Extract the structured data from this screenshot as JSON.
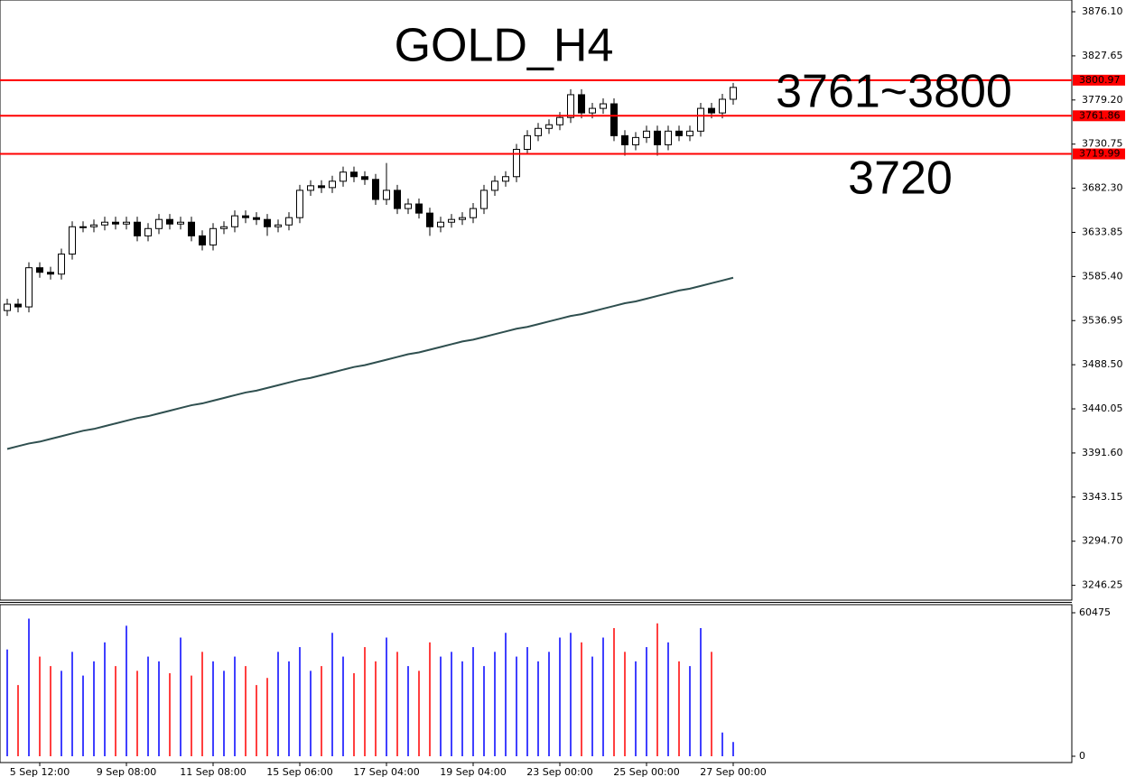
{
  "chart_data": {
    "type": "candlestick",
    "annotations": [
      {
        "text": "GOLD_H4",
        "color": "#ff0000"
      },
      {
        "text": "3761~3800",
        "color": "#000080"
      },
      {
        "text": "3720",
        "color": "#ff0000"
      }
    ],
    "categories": [
      null,
      null,
      null,
      "5 Sep 12:00",
      null,
      null,
      null,
      null,
      null,
      null,
      null,
      "9 Sep 08:00",
      null,
      null,
      null,
      null,
      null,
      null,
      null,
      "11 Sep 08:00",
      null,
      null,
      null,
      null,
      null,
      null,
      null,
      "15 Sep 06:00",
      null,
      null,
      null,
      null,
      null,
      null,
      null,
      "17 Sep 04:00",
      null,
      null,
      null,
      null,
      null,
      null,
      null,
      "19 Sep 04:00",
      null,
      null,
      null,
      null,
      null,
      null,
      null,
      "23 Sep 00:00",
      null,
      null,
      null,
      null,
      null,
      null,
      null,
      "25 Sep 00:00",
      null,
      null,
      null,
      null,
      null,
      null,
      null,
      "27 Sep 00:00"
    ],
    "open": [
      3548,
      3555,
      3552,
      3595,
      3590,
      3588,
      3610,
      3640,
      3640,
      3642,
      3645,
      3643,
      3645,
      3630,
      3638,
      3648,
      3643,
      3645,
      3630,
      3620,
      3638,
      3640,
      3652,
      3650,
      3648,
      3640,
      3642,
      3650,
      3680,
      3685,
      3683,
      3690,
      3700,
      3695,
      3692,
      3670,
      3680,
      3660,
      3665,
      3655,
      3640,
      3645,
      3648,
      3650,
      3660,
      3680,
      3690,
      3695,
      3725,
      3740,
      3748,
      3752,
      3760,
      3785,
      3765,
      3770,
      3775,
      3740,
      3730,
      3738,
      3745,
      3730,
      3745,
      3740,
      3745,
      3770,
      3765,
      3780
    ],
    "high": [
      3561,
      3561,
      3601,
      3601,
      3596,
      3616,
      3646,
      3646,
      3648,
      3651,
      3651,
      3651,
      3651,
      3644,
      3654,
      3654,
      3651,
      3651,
      3636,
      3644,
      3646,
      3658,
      3658,
      3656,
      3654,
      3648,
      3656,
      3686,
      3691,
      3691,
      3696,
      3706,
      3706,
      3701,
      3698,
      3710,
      3686,
      3671,
      3671,
      3661,
      3651,
      3654,
      3656,
      3666,
      3686,
      3696,
      3701,
      3731,
      3746,
      3754,
      3758,
      3766,
      3791,
      3791,
      3776,
      3781,
      3781,
      3746,
      3744,
      3751,
      3751,
      3751,
      3751,
      3751,
      3776,
      3776,
      3786,
      3798
    ],
    "low": [
      3542,
      3546,
      3546,
      3584,
      3582,
      3582,
      3604,
      3634,
      3634,
      3636,
      3637,
      3637,
      3624,
      3624,
      3632,
      3637,
      3637,
      3624,
      3614,
      3614,
      3632,
      3634,
      3644,
      3642,
      3630,
      3634,
      3636,
      3644,
      3674,
      3677,
      3677,
      3684,
      3689,
      3686,
      3664,
      3664,
      3654,
      3654,
      3649,
      3630,
      3634,
      3639,
      3642,
      3644,
      3654,
      3674,
      3684,
      3689,
      3719,
      3734,
      3742,
      3746,
      3754,
      3759,
      3759,
      3764,
      3734,
      3718,
      3724,
      3732,
      3718,
      3724,
      3734,
      3734,
      3739,
      3759,
      3759,
      3774
    ],
    "close": [
      3555,
      3552,
      3595,
      3590,
      3588,
      3610,
      3640,
      3640,
      3642,
      3645,
      3643,
      3645,
      3630,
      3638,
      3648,
      3643,
      3645,
      3630,
      3620,
      3638,
      3640,
      3652,
      3650,
      3648,
      3640,
      3642,
      3650,
      3680,
      3685,
      3683,
      3690,
      3700,
      3695,
      3692,
      3670,
      3680,
      3660,
      3665,
      3655,
      3640,
      3645,
      3648,
      3650,
      3660,
      3680,
      3690,
      3695,
      3725,
      3740,
      3748,
      3752,
      3760,
      3785,
      3765,
      3770,
      3775,
      3740,
      3730,
      3738,
      3745,
      3730,
      3745,
      3740,
      3745,
      3770,
      3765,
      3780,
      3793
    ],
    "moving_average": {
      "color": "#2f4f4f",
      "values": [
        3396,
        3399,
        3402,
        3404,
        3407,
        3410,
        3413,
        3416,
        3418,
        3421,
        3424,
        3427,
        3430,
        3432,
        3435,
        3438,
        3441,
        3444,
        3446,
        3449,
        3452,
        3455,
        3458,
        3460,
        3463,
        3466,
        3469,
        3472,
        3474,
        3477,
        3480,
        3483,
        3486,
        3488,
        3491,
        3494,
        3497,
        3500,
        3502,
        3505,
        3508,
        3511,
        3514,
        3516,
        3519,
        3522,
        3525,
        3528,
        3530,
        3533,
        3536,
        3539,
        3542,
        3544,
        3547,
        3550,
        3553,
        3556,
        3558,
        3561,
        3564,
        3567,
        3570,
        3572,
        3575,
        3578,
        3581,
        3584
      ]
    },
    "ylim": [
      3230,
      3889
    ],
    "yticks": [
      {
        "value": 3876.1,
        "label": "3876.10"
      },
      {
        "value": 3827.65,
        "label": "3827.65"
      },
      {
        "value": 3779.2,
        "label": "3779.20"
      },
      {
        "value": 3730.75,
        "label": "3730.75"
      },
      {
        "value": 3682.3,
        "label": "3682.30"
      },
      {
        "value": 3633.85,
        "label": "3633.85"
      },
      {
        "value": 3585.4,
        "label": "3585.40"
      },
      {
        "value": 3536.95,
        "label": "3536.95"
      },
      {
        "value": 3488.5,
        "label": "3488.50"
      },
      {
        "value": 3440.05,
        "label": "3440.05"
      },
      {
        "value": 3391.6,
        "label": "3391.60"
      },
      {
        "value": 3343.15,
        "label": "3343.15"
      },
      {
        "value": 3294.7,
        "label": "3294.70"
      },
      {
        "value": 3246.25,
        "label": "3246.25"
      }
    ],
    "levels": [
      {
        "value": 3800.97,
        "label": "3800.97"
      },
      {
        "value": 3761.86,
        "label": "3761.86"
      },
      {
        "value": 3719.99,
        "label": "3719.99"
      }
    ],
    "level_color": "#ff0000",
    "volume": {
      "values": [
        45000,
        30000,
        58000,
        42000,
        38000,
        36000,
        44000,
        34000,
        40000,
        48000,
        38000,
        55000,
        36000,
        42000,
        40000,
        35000,
        50000,
        34000,
        44000,
        40000,
        36000,
        42000,
        38000,
        30000,
        33000,
        44000,
        40000,
        46000,
        36000,
        38000,
        52000,
        42000,
        35000,
        46000,
        40000,
        50000,
        44000,
        38000,
        36000,
        48000,
        42000,
        44000,
        40000,
        46000,
        38000,
        44000,
        52000,
        42000,
        46000,
        40000,
        44000,
        50000,
        52000,
        48000,
        42000,
        50000,
        54000,
        44000,
        40000,
        46000,
        56000,
        48000,
        40000,
        38000,
        54000,
        44000,
        10000,
        6000
      ],
      "up_color": "#0000ff",
      "down_color": "#ff0000",
      "ylim": [
        0,
        60475
      ],
      "yticks": [
        60475,
        0
      ]
    }
  }
}
